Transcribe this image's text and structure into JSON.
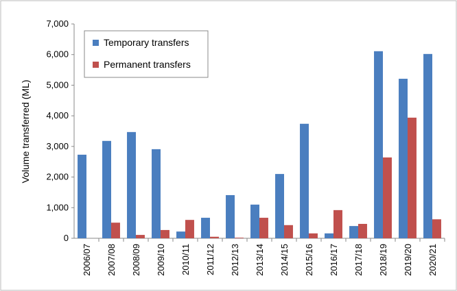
{
  "chart_data": {
    "type": "bar",
    "y_label": "Volume transferred (ML)",
    "categories": [
      "2006/07",
      "2007/08",
      "2008/09",
      "2009/10",
      "2010/11",
      "2011/12",
      "2012/13",
      "2013/14",
      "2014/15",
      "2015/16",
      "2016/17",
      "2017/18",
      "2018/19",
      "2019/20",
      "2020/21"
    ],
    "series": [
      {
        "name": "Temporary transfers",
        "color": "#4a7ebf",
        "values": [
          2730,
          3180,
          3470,
          2910,
          220,
          670,
          1410,
          1100,
          2100,
          3740,
          160,
          400,
          6110,
          5210,
          6020
        ]
      },
      {
        "name": "Permanent transfers",
        "color": "#c0504d",
        "values": [
          0,
          510,
          110,
          270,
          600,
          50,
          20,
          670,
          430,
          160,
          920,
          470,
          2640,
          3940,
          620
        ]
      }
    ],
    "ylim": [
      0,
      7000
    ],
    "yticks": [
      0,
      {
        "value": 1000,
        "label": "1,000"
      },
      {
        "value": 2000,
        "label": "2,000"
      },
      {
        "value": 3000,
        "label": "3,000"
      },
      {
        "value": 4000,
        "label": "4,000"
      },
      {
        "value": 5000,
        "label": "5,000"
      },
      {
        "value": 6000,
        "label": "6,000"
      },
      {
        "value": 7000,
        "label": "7,000"
      }
    ],
    "legend": "top-left"
  }
}
